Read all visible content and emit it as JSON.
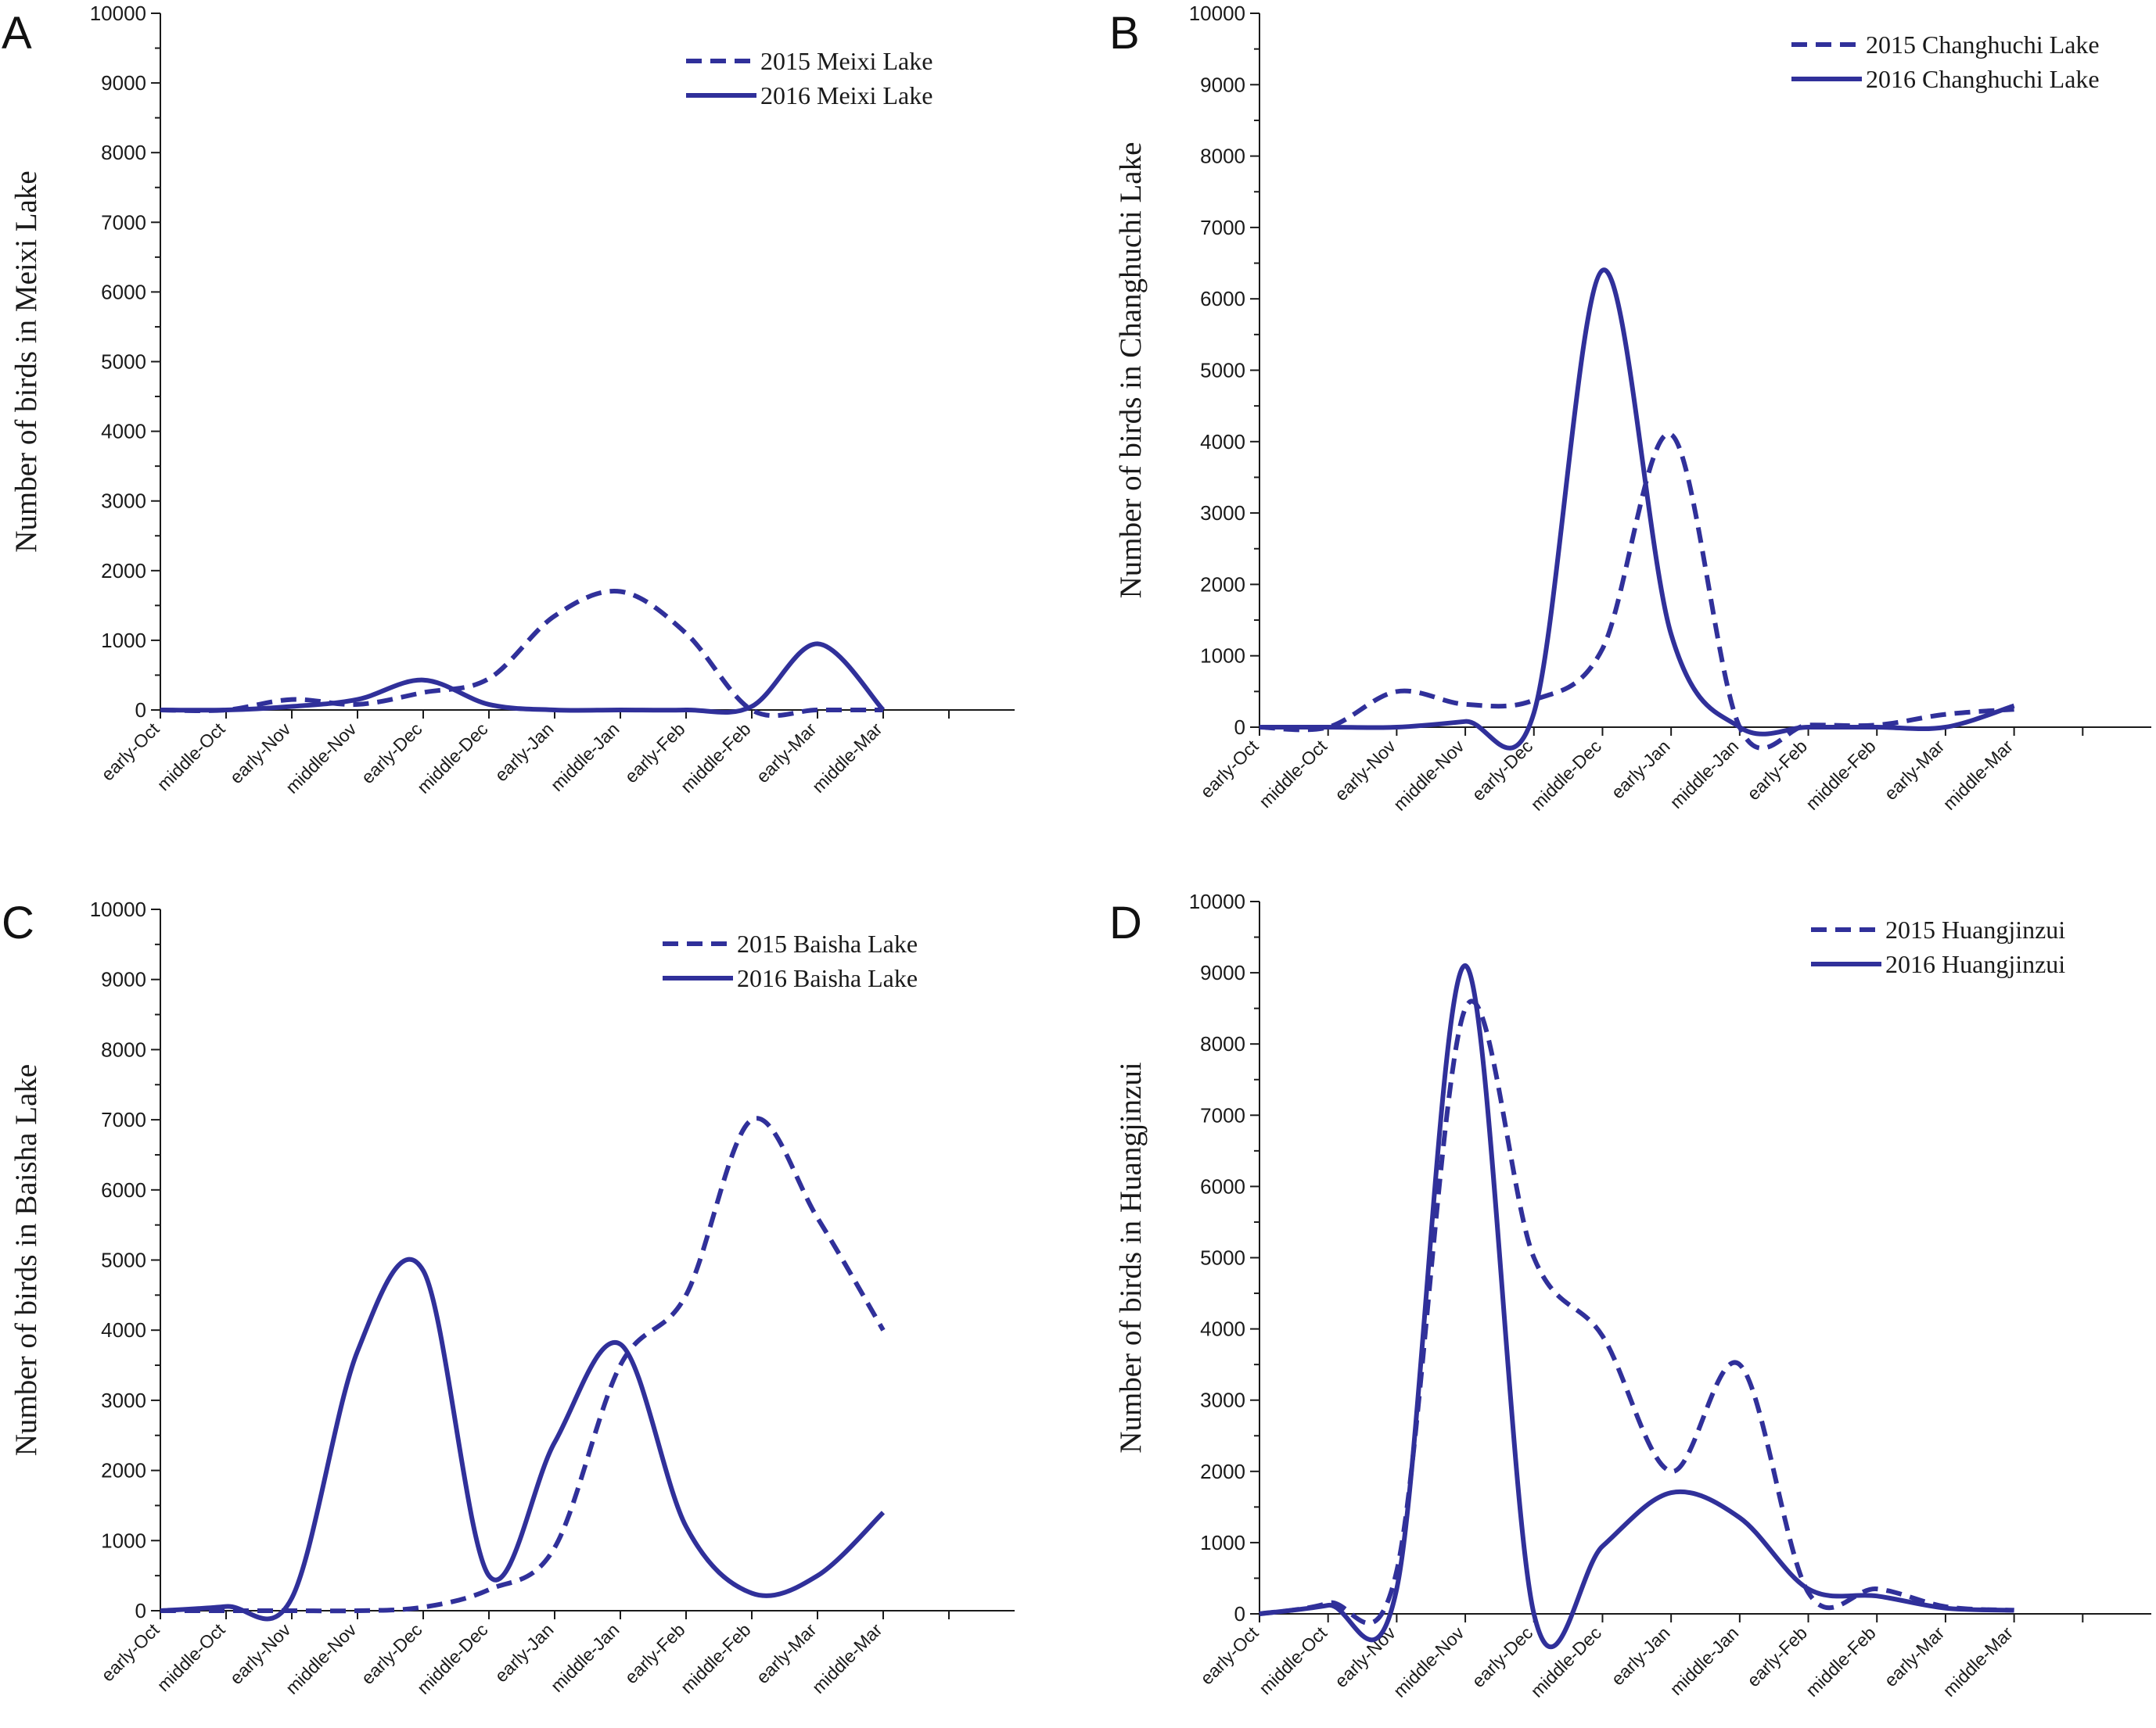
{
  "colors": {
    "series": "#30309a",
    "axis": "#1a1a1a"
  },
  "chart_data": [
    {
      "panel": "A",
      "type": "line",
      "categories": [
        "early-Oct",
        "middle-Oct",
        "early-Nov",
        "middle-Nov",
        "early-Dec",
        "middle-Dec",
        "early-Jan",
        "middle-Jan",
        "early-Feb",
        "middle-Feb",
        "early-Mar",
        "middle-Mar"
      ],
      "ylabel": "Number of birds in Meixi Lake",
      "xlabel": "",
      "ylim": [
        0,
        10000
      ],
      "yticks": [
        0,
        1000,
        2000,
        3000,
        4000,
        5000,
        6000,
        7000,
        8000,
        9000,
        10000
      ],
      "grid": false,
      "legend_position": "top-right",
      "series": [
        {
          "name": "2015 Meixi Lake",
          "style": "dashed",
          "values": [
            0,
            0,
            150,
            80,
            250,
            450,
            1350,
            1700,
            1100,
            0,
            0,
            0
          ]
        },
        {
          "name": "2016 Meixi Lake",
          "style": "solid",
          "values": [
            0,
            0,
            50,
            150,
            430,
            80,
            0,
            0,
            0,
            50,
            950,
            0
          ]
        }
      ]
    },
    {
      "panel": "B",
      "type": "line",
      "categories": [
        "early-Oct",
        "middle-Oct",
        "early-Nov",
        "middle-Nov",
        "early-Dec",
        "middle-Dec",
        "early-Jan",
        "middle-Jan",
        "early-Feb",
        "middle-Feb",
        "early-Mar",
        "middle-Mar"
      ],
      "ylabel": "Number of birds in Changhuchi Lake",
      "xlabel": "",
      "ylim": [
        0,
        10000
      ],
      "yticks": [
        0,
        1000,
        2000,
        3000,
        4000,
        5000,
        6000,
        7000,
        8000,
        9000,
        10000
      ],
      "grid": false,
      "legend_position": "top-right",
      "series": [
        {
          "name": "2015 Changhuchi  Lake",
          "style": "dashed",
          "values": [
            0,
            0,
            500,
            320,
            380,
            1100,
            4100,
            0,
            30,
            30,
            180,
            250
          ]
        },
        {
          "name": "2016 Changhuchi  Lake",
          "style": "solid",
          "values": [
            0,
            0,
            0,
            80,
            200,
            6400,
            1300,
            0,
            0,
            0,
            0,
            300
          ]
        }
      ]
    },
    {
      "panel": "C",
      "type": "line",
      "categories": [
        "early-Oct",
        "middle-Oct",
        "early-Nov",
        "middle-Nov",
        "early-Dec",
        "middle-Dec",
        "early-Jan",
        "middle-Jan",
        "early-Feb",
        "middle-Feb",
        "early-Mar",
        "middle-Mar"
      ],
      "ylabel": "Number of birds in Baisha Lake",
      "xlabel": "",
      "ylim": [
        0,
        10000
      ],
      "yticks": [
        0,
        1000,
        2000,
        3000,
        4000,
        5000,
        6000,
        7000,
        8000,
        9000,
        10000
      ],
      "grid": false,
      "legend_position": "top-right",
      "series": [
        {
          "name": "2015 Baisha  Lake",
          "style": "dashed",
          "values": [
            0,
            0,
            0,
            0,
            50,
            300,
            900,
            3500,
            4500,
            7000,
            5600,
            4000
          ]
        },
        {
          "name": "2016 Baisha  Lake",
          "style": "solid",
          "values": [
            0,
            60,
            180,
            3700,
            4850,
            500,
            2400,
            3800,
            1200,
            250,
            500,
            1400
          ]
        }
      ]
    },
    {
      "panel": "D",
      "type": "line",
      "categories": [
        "early-Oct",
        "middle-Oct",
        "early-Nov",
        "middle-Nov",
        "early-Dec",
        "middle-Dec",
        "early-Jan",
        "middle-Jan",
        "early-Feb",
        "middle-Feb",
        "early-Mar",
        "middle-Mar"
      ],
      "ylabel": "Number of birds in Huangjinzui",
      "xlabel": "",
      "ylim": [
        0,
        10000
      ],
      "yticks": [
        0,
        1000,
        2000,
        3000,
        4000,
        5000,
        6000,
        7000,
        8000,
        9000,
        10000
      ],
      "grid": false,
      "legend_position": "top-right",
      "series": [
        {
          "name": "2015 Huangjinzui",
          "style": "dashed",
          "values": [
            0,
            150,
            600,
            8500,
            5000,
            3900,
            2000,
            3500,
            300,
            350,
            100,
            50
          ]
        },
        {
          "name": "2016 Huangjinzui",
          "style": "solid",
          "values": [
            0,
            120,
            350,
            9100,
            0,
            950,
            1700,
            1350,
            350,
            250,
            80,
            50
          ]
        }
      ]
    }
  ]
}
